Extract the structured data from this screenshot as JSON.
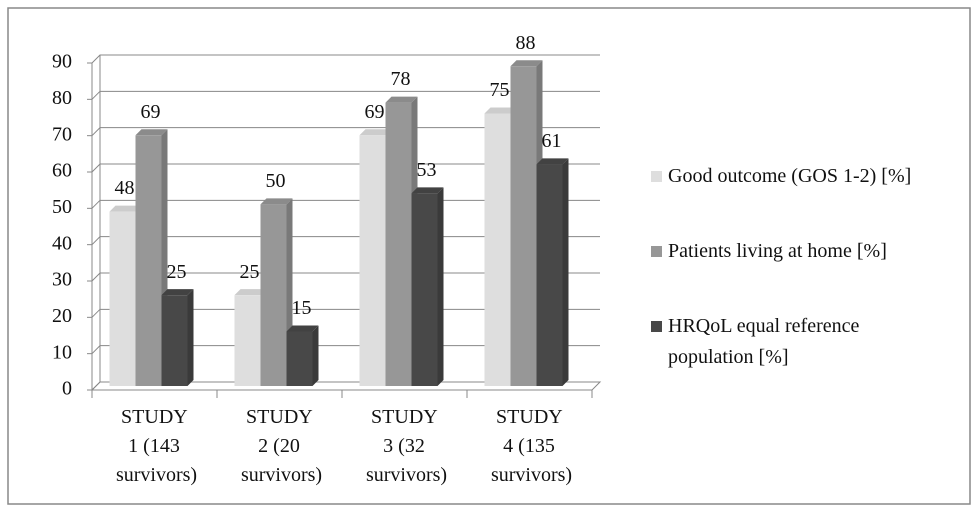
{
  "chart_data": {
    "type": "bar3d",
    "categories": [
      "STUDY 1 (143 survivors)",
      "STUDY 2 (20 survivors)",
      "STUDY 3 (32 survivors)",
      "STUDY 4 (135 survivors)"
    ],
    "series": [
      {
        "name": "Good outcome (GOS 1-2) [%]",
        "color": "#dedede",
        "values": [
          48,
          25,
          69,
          75
        ]
      },
      {
        "name": "Patients living at home [%]",
        "color": "#979797",
        "values": [
          69,
          50,
          78,
          88
        ]
      },
      {
        "name": "HRQoL equal reference population [%]",
        "color": "#484848",
        "values": [
          25,
          15,
          53,
          61
        ]
      }
    ],
    "ylim": [
      0,
      90
    ],
    "yticks": [
      0,
      10,
      20,
      30,
      40,
      50,
      60,
      70,
      80,
      90
    ],
    "grid": true,
    "legend": "right"
  }
}
